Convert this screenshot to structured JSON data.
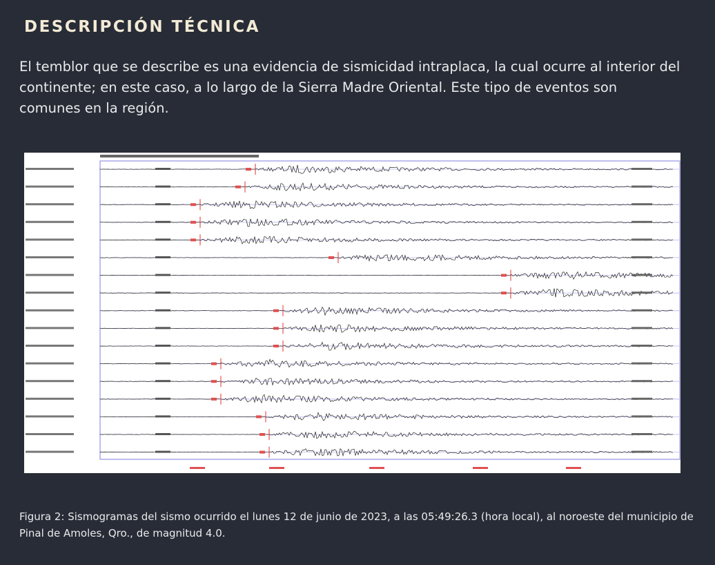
{
  "section": {
    "title": "DESCRIPCIÓN TÉCNICA",
    "paragraph": "El temblor que se describe es una evidencia de sismicidad intraplaca, la cual ocurre al interior del continente; en este caso, a lo largo de la Sierra Madre Oriental. Este tipo de eventos son comunes en la región."
  },
  "figure": {
    "caption": "Figura 2: Sismogramas del sismo ocurrido el lunes 12 de junio de 2023, a las 05:49:26.3 (hora local), al noroeste del municipio de Pinal de Amoles, Qro., de magnitud 4.0."
  }
}
